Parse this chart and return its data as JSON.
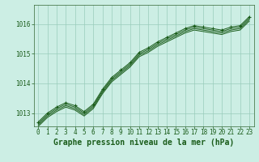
{
  "title": "Graphe pression niveau de la mer (hPa)",
  "bg_color": "#cceee4",
  "grid_color": "#99ccbb",
  "line_color": "#1a5c1a",
  "x_ticks": [
    0,
    1,
    2,
    3,
    4,
    5,
    6,
    7,
    8,
    9,
    10,
    11,
    12,
    13,
    14,
    15,
    16,
    17,
    18,
    19,
    20,
    21,
    22,
    23
  ],
  "y_ticks": [
    1013,
    1014,
    1015,
    1016
  ],
  "ylim": [
    1012.55,
    1016.65
  ],
  "xlim": [
    -0.5,
    23.5
  ],
  "series_main": [
    1012.7,
    1013.0,
    1013.2,
    1013.35,
    1013.25,
    1013.05,
    1013.3,
    1013.8,
    1014.2,
    1014.45,
    1014.7,
    1015.05,
    1015.2,
    1015.4,
    1015.55,
    1015.7,
    1015.85,
    1015.95,
    1015.9,
    1015.85,
    1015.8,
    1015.9,
    1015.95,
    1016.25
  ],
  "series_offsets": [
    -0.0,
    -0.05,
    -0.1,
    -0.15
  ],
  "title_fontsize": 7,
  "tick_fontsize": 5.5,
  "title_color": "#1a5c1a",
  "tick_color": "#1a5c1a",
  "spine_color": "#336633"
}
